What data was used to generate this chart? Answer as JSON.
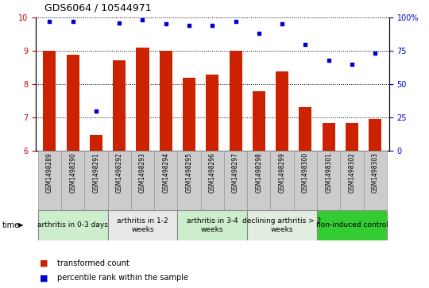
{
  "title": "GDS6064 / 10544971",
  "samples": [
    "GSM1498289",
    "GSM1498290",
    "GSM1498291",
    "GSM1498292",
    "GSM1498293",
    "GSM1498294",
    "GSM1498295",
    "GSM1498296",
    "GSM1498297",
    "GSM1498298",
    "GSM1498299",
    "GSM1498300",
    "GSM1498301",
    "GSM1498302",
    "GSM1498303"
  ],
  "transformed_count": [
    9.0,
    8.88,
    6.48,
    8.72,
    9.09,
    9.0,
    8.2,
    8.28,
    9.0,
    7.78,
    8.38,
    7.3,
    6.83,
    6.83,
    6.95
  ],
  "percentile_rank": [
    97,
    97,
    30,
    96,
    98,
    95,
    94,
    94,
    97,
    88,
    95,
    80,
    68,
    65,
    73
  ],
  "ylim_left": [
    6,
    10
  ],
  "ylim_right": [
    0,
    100
  ],
  "yticks_left": [
    6,
    7,
    8,
    9,
    10
  ],
  "yticks_right": [
    0,
    25,
    50,
    75,
    100
  ],
  "groups": [
    {
      "label": "arthritis in 0-3 days",
      "start": 0,
      "end": 3,
      "color": "#cceecc"
    },
    {
      "label": "arthritis in 1-2\nweeks",
      "start": 3,
      "end": 6,
      "color": "#e8e8e8"
    },
    {
      "label": "arthritis in 3-4\nweeks",
      "start": 6,
      "end": 9,
      "color": "#cceecc"
    },
    {
      "label": "declining arthritis > 2\nweeks",
      "start": 9,
      "end": 12,
      "color": "#e0ede0"
    },
    {
      "label": "non-induced control",
      "start": 12,
      "end": 15,
      "color": "#33cc33"
    }
  ],
  "bar_color": "#cc2200",
  "dot_color": "#0000cc",
  "bar_width": 0.55,
  "legend_label_bar": "transformed count",
  "legend_label_dot": "percentile rank within the sample",
  "left_axis_color": "#cc0000",
  "right_axis_color": "#0000cc",
  "sample_box_color": "#cccccc",
  "title_fontsize": 9,
  "axis_fontsize": 7,
  "sample_fontsize": 5.5,
  "group_fontsize": 6.5,
  "legend_fontsize": 7
}
